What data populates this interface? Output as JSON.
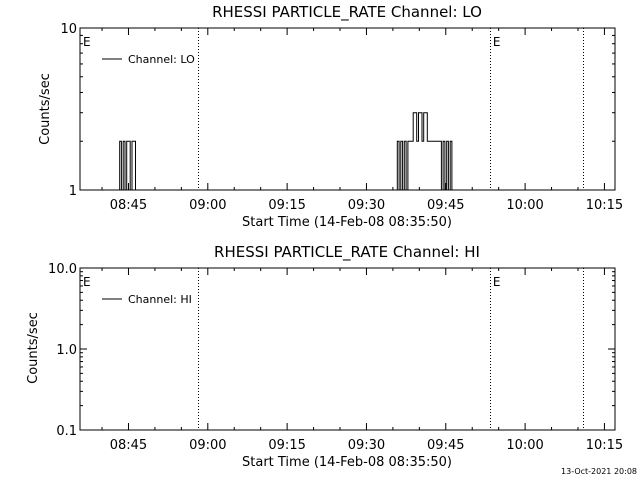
{
  "colors": {
    "background": "#ffffff",
    "ink": "#000000"
  },
  "footer": {
    "timestamp": "13-Oct-2021 20:08"
  },
  "chart_data": [
    {
      "type": "line",
      "title": "RHESSI PARTICLE_RATE Channel: LO",
      "xlabel": "Start Time (14-Feb-08 08:35:50)",
      "ylabel": "Counts/sec",
      "y_scale": "log",
      "ylim": [
        1,
        10
      ],
      "y_ticks": [
        "1",
        "10"
      ],
      "xlim": [
        "08:35:50",
        "10:17:00"
      ],
      "x_ticks": [
        "08:45",
        "09:00",
        "09:15",
        "09:30",
        "09:45",
        "10:00",
        "10:15"
      ],
      "legend": {
        "placement": "top-left",
        "entries": [
          "Channel: LO"
        ]
      },
      "annotations": [
        {
          "text": "E",
          "x": "08:35:50"
        },
        {
          "text": "E",
          "x": "09:53:20"
        }
      ],
      "vertical_dotted_lines": [
        "08:58:10",
        "09:53:20",
        "10:11:00"
      ],
      "series": [
        {
          "name": "Channel: LO",
          "x": [
            "08:43:30",
            "08:43:50",
            "08:44:10",
            "08:44:30",
            "08:44:50",
            "08:45:10",
            "08:45:30",
            "08:45:50",
            "08:46:10",
            "08:46:30",
            "09:36:00",
            "09:36:20",
            "09:36:40",
            "09:37:00",
            "09:37:20",
            "09:37:40",
            "09:38:00",
            "09:38:20",
            "09:38:40",
            "09:39:00",
            "09:39:20",
            "09:39:40",
            "09:40:00",
            "09:40:20",
            "09:40:40",
            "09:41:00",
            "09:41:20",
            "09:41:40",
            "09:42:00",
            "09:42:20",
            "09:42:40",
            "09:43:00",
            "09:43:20",
            "09:43:40",
            "09:44:00",
            "09:44:20",
            "09:44:40",
            "09:45:00",
            "09:45:20",
            "09:45:40",
            "09:46:00",
            "09:46:20"
          ],
          "y": [
            2,
            1,
            2,
            1,
            2,
            2,
            1,
            2,
            2,
            1,
            2,
            1,
            2,
            1,
            2,
            1,
            2,
            2,
            2,
            3,
            3,
            2,
            3,
            3,
            2,
            3,
            3,
            2,
            2,
            2,
            2,
            2,
            2,
            2,
            2,
            1,
            2,
            1,
            2,
            1,
            2,
            1
          ]
        }
      ]
    },
    {
      "type": "line",
      "title": "RHESSI PARTICLE_RATE Channel: HI",
      "xlabel": "Start Time (14-Feb-08 08:35:50)",
      "ylabel": "Counts/sec",
      "y_scale": "log",
      "ylim": [
        0.1,
        10
      ],
      "y_ticks": [
        "0.1",
        "1.0",
        "10.0"
      ],
      "xlim": [
        "08:35:50",
        "10:17:00"
      ],
      "x_ticks": [
        "08:45",
        "09:00",
        "09:15",
        "09:30",
        "09:45",
        "10:00",
        "10:15"
      ],
      "legend": {
        "placement": "top-left",
        "entries": [
          "Channel: HI"
        ]
      },
      "annotations": [
        {
          "text": "E",
          "x": "08:35:50"
        },
        {
          "text": "E",
          "x": "09:53:20"
        }
      ],
      "vertical_dotted_lines": [
        "08:58:10",
        "09:53:20",
        "10:11:00"
      ],
      "series": [
        {
          "name": "Channel: HI",
          "x": [],
          "y": []
        }
      ]
    }
  ]
}
